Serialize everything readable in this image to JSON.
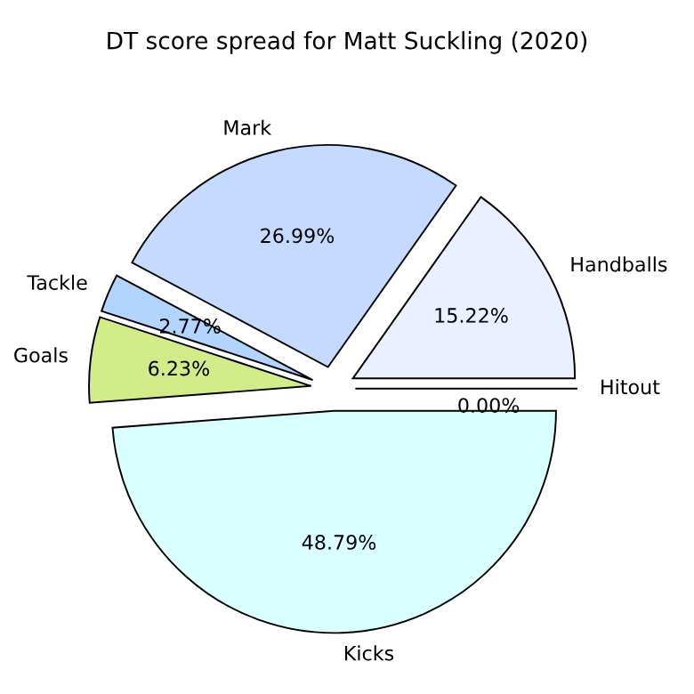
{
  "chart_data": {
    "type": "pie",
    "title": "DT score spread for Matt Suckling (2020)",
    "categories": [
      "Hitout",
      "Handballs",
      "Mark",
      "Tackle",
      "Goals",
      "Kicks"
    ],
    "values": [
      0.0,
      15.22,
      26.99,
      2.77,
      6.23,
      48.79
    ],
    "value_labels": [
      "0.00%",
      "15.22%",
      "26.99%",
      "2.77%",
      "6.23%",
      "48.79%"
    ],
    "colors": [
      "#e0e0ff",
      "#eaf0ff",
      "#c6d9ff",
      "#b3d4ff",
      "#d3ec8a",
      "#d9ffff"
    ],
    "legend": false
  }
}
